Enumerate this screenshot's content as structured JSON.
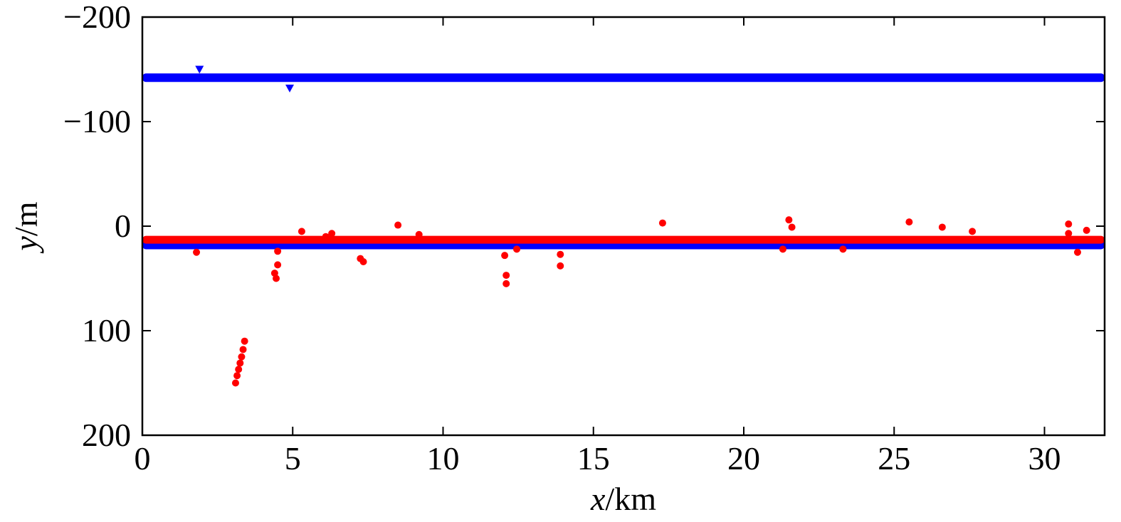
{
  "chart_data": {
    "type": "scatter",
    "title": "",
    "xlabel": {
      "var": "x",
      "unit": "/km"
    },
    "ylabel": {
      "var": "y",
      "unit": "/m"
    },
    "xlim": [
      0,
      32
    ],
    "ylim": [
      -200,
      200
    ],
    "y_inverted": true,
    "grid": false,
    "legend": "none",
    "x_ticks": [
      {
        "value": 0,
        "label": "0"
      },
      {
        "value": 5,
        "label": "5"
      },
      {
        "value": 10,
        "label": "10"
      },
      {
        "value": 15,
        "label": "15"
      },
      {
        "value": 20,
        "label": "20"
      },
      {
        "value": 25,
        "label": "25"
      },
      {
        "value": 30,
        "label": "30"
      }
    ],
    "y_ticks": [
      {
        "value": -200,
        "label": "−200"
      },
      {
        "value": -100,
        "label": "−100"
      },
      {
        "value": 0,
        "label": "0"
      },
      {
        "value": 100,
        "label": "100"
      },
      {
        "value": 200,
        "label": "200"
      }
    ],
    "series": [
      {
        "color": "#0000ff",
        "marker": "triangle-down",
        "bands": [
          {
            "x_start": 0,
            "x_end": 32,
            "y": -142
          },
          {
            "x_start": 0,
            "x_end": 32,
            "y": 18
          }
        ],
        "points": [
          {
            "x": 1.9,
            "y": -150
          },
          {
            "x": 4.9,
            "y": -132
          },
          {
            "x": 10.4,
            "y": 15
          },
          {
            "x": 14.2,
            "y": 17
          },
          {
            "x": 26.0,
            "y": 17
          }
        ]
      },
      {
        "color": "#ff0000",
        "marker": "circle",
        "bands": [
          {
            "x_start": 0,
            "x_end": 32,
            "y": 13
          }
        ],
        "points": [
          {
            "x": 1.8,
            "y": 25
          },
          {
            "x": 3.1,
            "y": 150
          },
          {
            "x": 3.15,
            "y": 143
          },
          {
            "x": 3.2,
            "y": 137
          },
          {
            "x": 3.25,
            "y": 131
          },
          {
            "x": 3.3,
            "y": 125
          },
          {
            "x": 3.35,
            "y": 118
          },
          {
            "x": 3.4,
            "y": 110
          },
          {
            "x": 4.4,
            "y": 45
          },
          {
            "x": 4.45,
            "y": 50
          },
          {
            "x": 4.5,
            "y": 37
          },
          {
            "x": 4.5,
            "y": 24
          },
          {
            "x": 5.3,
            "y": 5
          },
          {
            "x": 6.1,
            "y": 10
          },
          {
            "x": 6.3,
            "y": 7
          },
          {
            "x": 7.25,
            "y": 31
          },
          {
            "x": 7.35,
            "y": 34
          },
          {
            "x": 8.5,
            "y": -1
          },
          {
            "x": 9.2,
            "y": 8
          },
          {
            "x": 12.05,
            "y": 28
          },
          {
            "x": 12.1,
            "y": 47
          },
          {
            "x": 12.1,
            "y": 55
          },
          {
            "x": 12.45,
            "y": 22
          },
          {
            "x": 13.9,
            "y": 27
          },
          {
            "x": 13.9,
            "y": 38
          },
          {
            "x": 17.3,
            "y": -3
          },
          {
            "x": 21.3,
            "y": 22
          },
          {
            "x": 21.5,
            "y": -6
          },
          {
            "x": 21.6,
            "y": 1
          },
          {
            "x": 23.3,
            "y": 22
          },
          {
            "x": 25.5,
            "y": -4
          },
          {
            "x": 26.6,
            "y": 1
          },
          {
            "x": 27.6,
            "y": 5
          },
          {
            "x": 30.8,
            "y": -2
          },
          {
            "x": 30.8,
            "y": 7
          },
          {
            "x": 31.1,
            "y": 25
          },
          {
            "x": 31.4,
            "y": 4
          }
        ]
      }
    ]
  }
}
